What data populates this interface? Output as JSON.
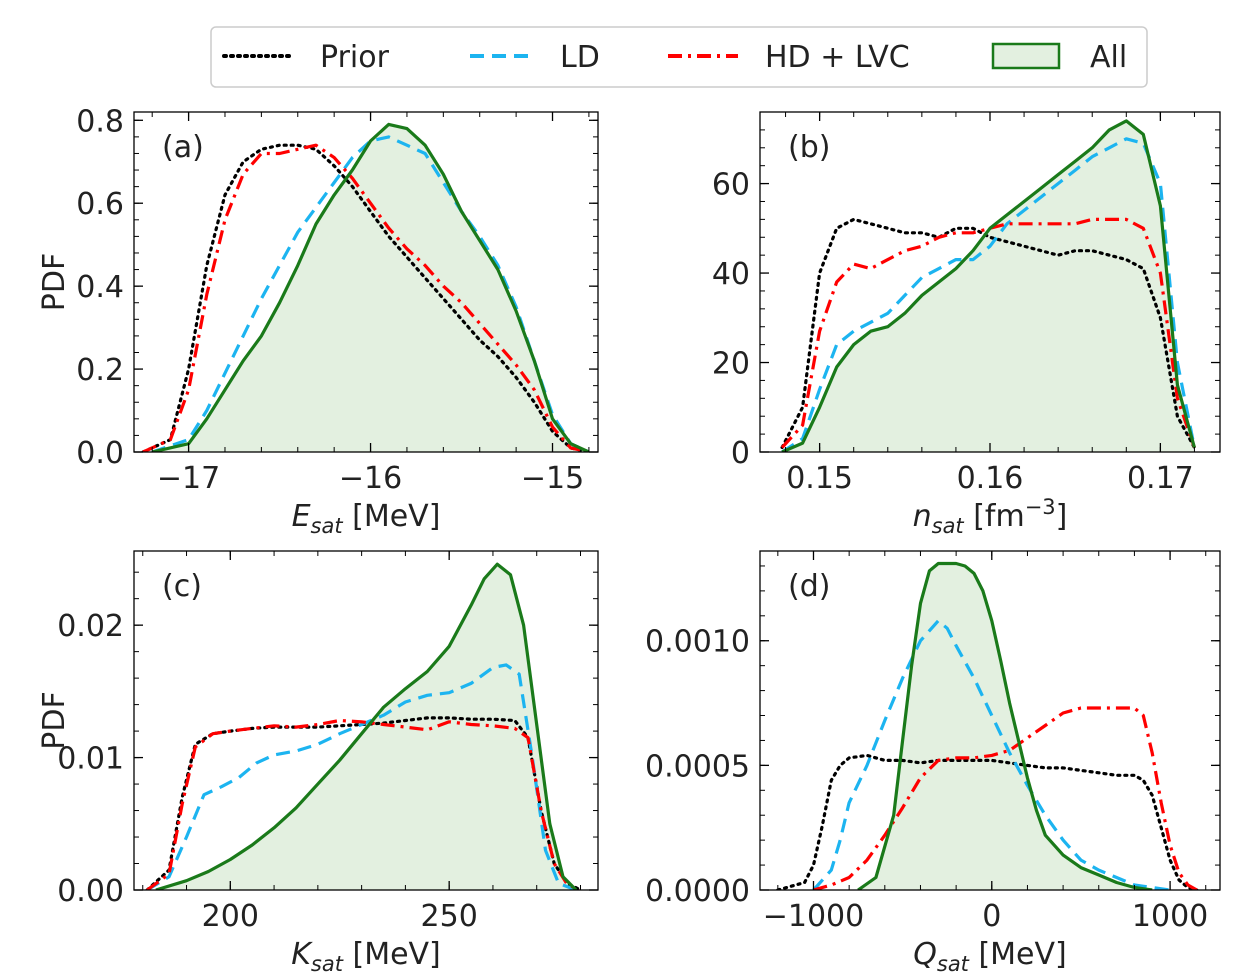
{
  "legend": {
    "entries": [
      {
        "label": "Prior",
        "color": "#000000",
        "style": "dotted"
      },
      {
        "label": "LD",
        "color": "#1cb4f0",
        "style": "dashed"
      },
      {
        "label": "HD + LVC",
        "color": "#ff0000",
        "style": "dashdot"
      },
      {
        "label": "All",
        "color": "#1a7a1a",
        "style": "filled",
        "fill": "#e3f0e0"
      }
    ]
  },
  "chart_data": [
    {
      "type": "line",
      "panel": "(a)",
      "ylabel": "PDF",
      "xlabel_main": "E",
      "xlabel_sub": "sat",
      "xlabel_unit": " [MeV]",
      "xlim": [
        -17.3,
        -14.75
      ],
      "ylim": [
        0,
        0.82
      ],
      "xticks": [
        -17,
        -16,
        -15
      ],
      "xtick_labels": [
        "−17",
        "−16",
        "−15"
      ],
      "yticks": [
        0,
        0.2,
        0.4,
        0.6,
        0.8
      ],
      "ytick_labels": [
        "0.0",
        "0.2",
        "0.4",
        "0.6",
        "0.8"
      ],
      "series": [
        {
          "name": "Prior",
          "x": [
            -17.25,
            -17.1,
            -17.0,
            -16.9,
            -16.8,
            -16.7,
            -16.6,
            -16.5,
            -16.4,
            -16.3,
            -16.2,
            -16.1,
            -16.0,
            -15.9,
            -15.8,
            -15.7,
            -15.6,
            -15.5,
            -15.4,
            -15.3,
            -15.2,
            -15.1,
            -15.0,
            -14.9,
            -14.8
          ],
          "y": [
            0.0,
            0.03,
            0.2,
            0.45,
            0.62,
            0.7,
            0.73,
            0.74,
            0.74,
            0.73,
            0.69,
            0.64,
            0.58,
            0.52,
            0.47,
            0.42,
            0.37,
            0.32,
            0.27,
            0.23,
            0.18,
            0.12,
            0.05,
            0.01,
            0.0
          ]
        },
        {
          "name": "LD",
          "x": [
            -17.2,
            -17.0,
            -16.9,
            -16.8,
            -16.7,
            -16.6,
            -16.5,
            -16.4,
            -16.3,
            -16.2,
            -16.1,
            -16.0,
            -15.9,
            -15.8,
            -15.7,
            -15.6,
            -15.5,
            -15.4,
            -15.3,
            -15.2,
            -15.1,
            -15.0,
            -14.9,
            -14.8
          ],
          "y": [
            0.0,
            0.03,
            0.1,
            0.19,
            0.28,
            0.37,
            0.45,
            0.53,
            0.59,
            0.65,
            0.71,
            0.75,
            0.76,
            0.74,
            0.72,
            0.65,
            0.58,
            0.52,
            0.45,
            0.35,
            0.22,
            0.09,
            0.02,
            0.0
          ]
        },
        {
          "name": "HD + LVC",
          "x": [
            -17.25,
            -17.1,
            -17.0,
            -16.9,
            -16.8,
            -16.7,
            -16.6,
            -16.5,
            -16.4,
            -16.3,
            -16.2,
            -16.1,
            -16.0,
            -15.9,
            -15.8,
            -15.7,
            -15.6,
            -15.5,
            -15.4,
            -15.3,
            -15.2,
            -15.1,
            -15.0,
            -14.9,
            -14.8
          ],
          "y": [
            0.0,
            0.03,
            0.15,
            0.38,
            0.56,
            0.67,
            0.72,
            0.72,
            0.73,
            0.74,
            0.71,
            0.66,
            0.6,
            0.54,
            0.49,
            0.45,
            0.4,
            0.36,
            0.31,
            0.26,
            0.21,
            0.15,
            0.06,
            0.01,
            0.0
          ]
        },
        {
          "name": "All",
          "x": [
            -17.2,
            -17.0,
            -16.9,
            -16.8,
            -16.7,
            -16.6,
            -16.5,
            -16.4,
            -16.3,
            -16.2,
            -16.1,
            -16.0,
            -15.9,
            -15.8,
            -15.7,
            -15.6,
            -15.5,
            -15.4,
            -15.3,
            -15.2,
            -15.1,
            -15.0,
            -14.9,
            -14.8
          ],
          "y": [
            0.0,
            0.02,
            0.08,
            0.15,
            0.22,
            0.28,
            0.36,
            0.45,
            0.55,
            0.62,
            0.68,
            0.75,
            0.79,
            0.78,
            0.74,
            0.67,
            0.58,
            0.51,
            0.44,
            0.34,
            0.22,
            0.08,
            0.02,
            0.0
          ]
        }
      ]
    },
    {
      "type": "line",
      "panel": "(b)",
      "ylabel": "",
      "xlabel_main": "n",
      "xlabel_sub": "sat",
      "xlabel_unit": " [fm",
      "xlabel_sup": "−3",
      "xlabel_close": "]",
      "xlim": [
        0.1465,
        0.1735
      ],
      "ylim": [
        0,
        76
      ],
      "xticks": [
        0.15,
        0.16,
        0.17
      ],
      "xtick_labels": [
        "0.15",
        "0.16",
        "0.17"
      ],
      "yticks": [
        0,
        20,
        40,
        60
      ],
      "ytick_labels": [
        "0",
        "20",
        "40",
        "60"
      ],
      "series": [
        {
          "name": "Prior",
          "x": [
            0.1478,
            0.149,
            0.15,
            0.151,
            0.152,
            0.153,
            0.154,
            0.155,
            0.156,
            0.157,
            0.158,
            0.159,
            0.16,
            0.161,
            0.162,
            0.163,
            0.164,
            0.165,
            0.166,
            0.167,
            0.168,
            0.169,
            0.17,
            0.171,
            0.172
          ],
          "y": [
            1.0,
            10.0,
            40.0,
            50.0,
            52.0,
            51.0,
            50.0,
            49.0,
            49.0,
            48.0,
            50.0,
            50.0,
            48.0,
            47.0,
            46.0,
            45.0,
            44.0,
            45.0,
            45.0,
            44.0,
            43.0,
            41.0,
            30.0,
            8.0,
            1.0
          ]
        },
        {
          "name": "LD",
          "x": [
            0.1478,
            0.149,
            0.15,
            0.151,
            0.152,
            0.153,
            0.154,
            0.155,
            0.156,
            0.157,
            0.158,
            0.159,
            0.16,
            0.161,
            0.162,
            0.163,
            0.164,
            0.165,
            0.166,
            0.167,
            0.168,
            0.169,
            0.17,
            0.171,
            0.172
          ],
          "y": [
            0.0,
            3.0,
            14.0,
            24.0,
            27.0,
            29.0,
            31.0,
            35.0,
            39.0,
            41.0,
            43.0,
            43.0,
            46.0,
            51.0,
            54.0,
            57.0,
            60.0,
            63.0,
            66.0,
            68.0,
            70.0,
            69.0,
            60.0,
            20.0,
            1.0
          ]
        },
        {
          "name": "HD + LVC",
          "x": [
            0.1478,
            0.149,
            0.15,
            0.151,
            0.152,
            0.153,
            0.154,
            0.155,
            0.156,
            0.157,
            0.158,
            0.159,
            0.16,
            0.161,
            0.162,
            0.163,
            0.164,
            0.165,
            0.166,
            0.167,
            0.168,
            0.169,
            0.17,
            0.171,
            0.172
          ],
          "y": [
            1.0,
            6.0,
            27.0,
            38.0,
            42.0,
            41.0,
            43.0,
            45.0,
            46.0,
            48.0,
            49.0,
            49.0,
            50.0,
            51.0,
            51.0,
            51.0,
            51.0,
            51.0,
            52.0,
            52.0,
            52.0,
            50.0,
            40.0,
            12.0,
            1.0
          ]
        },
        {
          "name": "All",
          "x": [
            0.1478,
            0.149,
            0.15,
            0.151,
            0.152,
            0.153,
            0.154,
            0.155,
            0.156,
            0.157,
            0.158,
            0.159,
            0.16,
            0.161,
            0.162,
            0.163,
            0.164,
            0.165,
            0.166,
            0.167,
            0.168,
            0.169,
            0.17,
            0.171,
            0.172
          ],
          "y": [
            0.0,
            2.0,
            10.0,
            19.0,
            24.0,
            27.0,
            28.0,
            31.0,
            35.0,
            38.0,
            41.0,
            45.0,
            50.0,
            53.0,
            56.0,
            59.0,
            62.0,
            65.0,
            68.0,
            72.0,
            74.0,
            71.0,
            55.0,
            15.0,
            1.0
          ]
        }
      ]
    },
    {
      "type": "line",
      "panel": "(c)",
      "ylabel": "PDF",
      "xlabel_main": "K",
      "xlabel_sub": "sat",
      "xlabel_unit": " [MeV]",
      "xlim": [
        178,
        284
      ],
      "ylim": [
        0,
        0.0256
      ],
      "xticks": [
        200,
        250
      ],
      "xtick_labels": [
        "200",
        "250"
      ],
      "yticks": [
        0,
        0.01,
        0.02
      ],
      "ytick_labels": [
        "0.00",
        "0.01",
        "0.02"
      ],
      "series": [
        {
          "name": "Prior",
          "x": [
            181,
            186,
            189,
            192,
            196,
            200,
            205,
            210,
            215,
            220,
            225,
            230,
            235,
            240,
            245,
            250,
            255,
            260,
            265,
            268,
            271,
            274,
            277,
            280
          ],
          "y": [
            0.0,
            0.0015,
            0.007,
            0.011,
            0.0118,
            0.012,
            0.0122,
            0.0123,
            0.0123,
            0.0123,
            0.0124,
            0.0125,
            0.0126,
            0.0128,
            0.013,
            0.013,
            0.0129,
            0.0129,
            0.0128,
            0.0115,
            0.006,
            0.002,
            0.0005,
            0.0
          ]
        },
        {
          "name": "LD",
          "x": [
            181,
            186,
            190,
            194,
            198,
            202,
            206,
            210,
            215,
            220,
            225,
            230,
            235,
            240,
            245,
            250,
            255,
            260,
            263,
            266,
            269,
            272,
            275,
            279
          ],
          "y": [
            0.0,
            0.001,
            0.004,
            0.0072,
            0.0078,
            0.0085,
            0.0096,
            0.0102,
            0.0105,
            0.011,
            0.0118,
            0.0125,
            0.0132,
            0.0142,
            0.0147,
            0.0149,
            0.0156,
            0.0168,
            0.017,
            0.0163,
            0.01,
            0.003,
            0.0005,
            0.0
          ]
        },
        {
          "name": "HD + LVC",
          "x": [
            181,
            186,
            189,
            192,
            196,
            200,
            205,
            210,
            215,
            220,
            225,
            230,
            235,
            240,
            245,
            250,
            255,
            260,
            265,
            268,
            271,
            274,
            277,
            280
          ],
          "y": [
            0.0,
            0.0012,
            0.0065,
            0.0108,
            0.0118,
            0.012,
            0.0122,
            0.0124,
            0.0123,
            0.0125,
            0.0128,
            0.0127,
            0.0125,
            0.0123,
            0.0121,
            0.0127,
            0.0125,
            0.0124,
            0.0122,
            0.0115,
            0.006,
            0.002,
            0.0004,
            0.0
          ]
        },
        {
          "name": "All",
          "x": [
            183,
            190,
            195,
            200,
            205,
            210,
            215,
            220,
            225,
            230,
            235,
            240,
            245,
            250,
            255,
            258,
            261,
            264,
            267,
            270,
            273,
            276,
            279
          ],
          "y": [
            0.0,
            0.0007,
            0.0014,
            0.0023,
            0.0034,
            0.0047,
            0.0062,
            0.008,
            0.0098,
            0.0118,
            0.0138,
            0.0152,
            0.0165,
            0.0184,
            0.0215,
            0.0235,
            0.0246,
            0.0238,
            0.02,
            0.0125,
            0.005,
            0.001,
            0.0
          ]
        }
      ]
    },
    {
      "type": "line",
      "panel": "(d)",
      "ylabel": "",
      "xlabel_main": "Q",
      "xlabel_sub": "sat",
      "xlabel_unit": " [MeV]",
      "xlim": [
        -1300,
        1280
      ],
      "ylim": [
        0,
        0.00136
      ],
      "xticks": [
        -1000,
        0,
        1000
      ],
      "xtick_labels": [
        "−1000",
        "0",
        "1000"
      ],
      "yticks": [
        0,
        0.0005,
        0.001
      ],
      "ytick_labels": [
        "0.0000",
        "0.0005",
        "0.0010"
      ],
      "series": [
        {
          "name": "Prior",
          "x": [
            -1200,
            -1050,
            -1000,
            -950,
            -900,
            -850,
            -800,
            -700,
            -600,
            -500,
            -400,
            -300,
            -200,
            -100,
            0,
            100,
            200,
            300,
            400,
            500,
            600,
            700,
            800,
            850,
            900,
            950,
            1000,
            1050,
            1100,
            1150
          ],
          "y": [
            0.0,
            3e-05,
            0.0001,
            0.00026,
            0.00044,
            0.0005,
            0.00053,
            0.00054,
            0.00052,
            0.00052,
            0.00051,
            0.00052,
            0.00052,
            0.00052,
            0.00052,
            0.00051,
            0.0005,
            0.00049,
            0.00049,
            0.00048,
            0.00047,
            0.00046,
            0.00046,
            0.00044,
            0.00038,
            0.00025,
            0.00012,
            4e-05,
            1e-05,
            0.0
          ]
        },
        {
          "name": "LD",
          "x": [
            -1000,
            -900,
            -850,
            -800,
            -700,
            -600,
            -500,
            -400,
            -300,
            -250,
            -200,
            -100,
            0,
            100,
            200,
            300,
            400,
            500,
            600,
            700,
            800,
            900,
            1000
          ],
          "y": [
            0.0,
            8e-05,
            0.0002,
            0.00035,
            0.0005,
            0.00068,
            0.00085,
            0.001,
            0.00108,
            0.00105,
            0.00098,
            0.00085,
            0.0007,
            0.00055,
            0.00042,
            0.0003,
            0.0002,
            0.00012,
            8e-05,
            5e-05,
            2e-05,
            1e-05,
            0.0
          ]
        },
        {
          "name": "HD + LVC",
          "x": [
            -1000,
            -900,
            -800,
            -700,
            -600,
            -500,
            -400,
            -300,
            -200,
            -100,
            0,
            100,
            200,
            300,
            400,
            500,
            600,
            700,
            800,
            850,
            900,
            950,
            1000,
            1050,
            1100,
            1150
          ],
          "y": [
            0.0,
            2e-05,
            5e-05,
            0.00012,
            0.00022,
            0.00033,
            0.00045,
            0.00052,
            0.00053,
            0.00053,
            0.00054,
            0.00056,
            0.00061,
            0.00066,
            0.00071,
            0.00073,
            0.00073,
            0.00073,
            0.00073,
            0.0007,
            0.00055,
            0.00035,
            0.00018,
            7e-05,
            2e-05,
            0.0
          ]
        },
        {
          "name": "All",
          "x": [
            -750,
            -650,
            -550,
            -500,
            -450,
            -400,
            -350,
            -300,
            -250,
            -200,
            -150,
            -100,
            -50,
            0,
            50,
            100,
            150,
            200,
            250,
            300,
            400,
            500,
            600,
            700,
            800,
            900
          ],
          "y": [
            0.0,
            5e-05,
            0.0003,
            0.0006,
            0.0009,
            0.00115,
            0.00128,
            0.00131,
            0.00131,
            0.00131,
            0.0013,
            0.00127,
            0.0012,
            0.00108,
            0.00092,
            0.00075,
            0.0006,
            0.00045,
            0.00032,
            0.00022,
            0.00014,
            9e-05,
            6e-05,
            3e-05,
            1e-05,
            0.0
          ]
        }
      ]
    }
  ]
}
